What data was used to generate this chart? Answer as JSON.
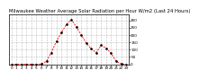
{
  "title": "Milwaukee Weather Average Solar Radiation per Hour W/m2 (Last 24 Hours)",
  "x_labels": [
    "0",
    "1",
    "2",
    "3",
    "4",
    "5",
    "6",
    "7",
    "8",
    "9",
    "10",
    "11",
    "12",
    "13",
    "14",
    "15",
    "16",
    "17",
    "18",
    "19",
    "20",
    "21",
    "22",
    "23"
  ],
  "y_values": [
    0,
    0,
    0,
    0,
    0,
    0,
    2,
    20,
    80,
    155,
    215,
    270,
    305,
    255,
    200,
    145,
    105,
    80,
    130,
    110,
    75,
    20,
    3,
    0
  ],
  "line_color": "#ff0000",
  "marker_color": "#000000",
  "bg_color": "#ffffff",
  "grid_color": "#888888",
  "ylim": [
    0,
    340
  ],
  "y_ticks": [
    0,
    50,
    100,
    150,
    200,
    250,
    300
  ],
  "title_fontsize": 3.8,
  "tick_fontsize": 3.0
}
